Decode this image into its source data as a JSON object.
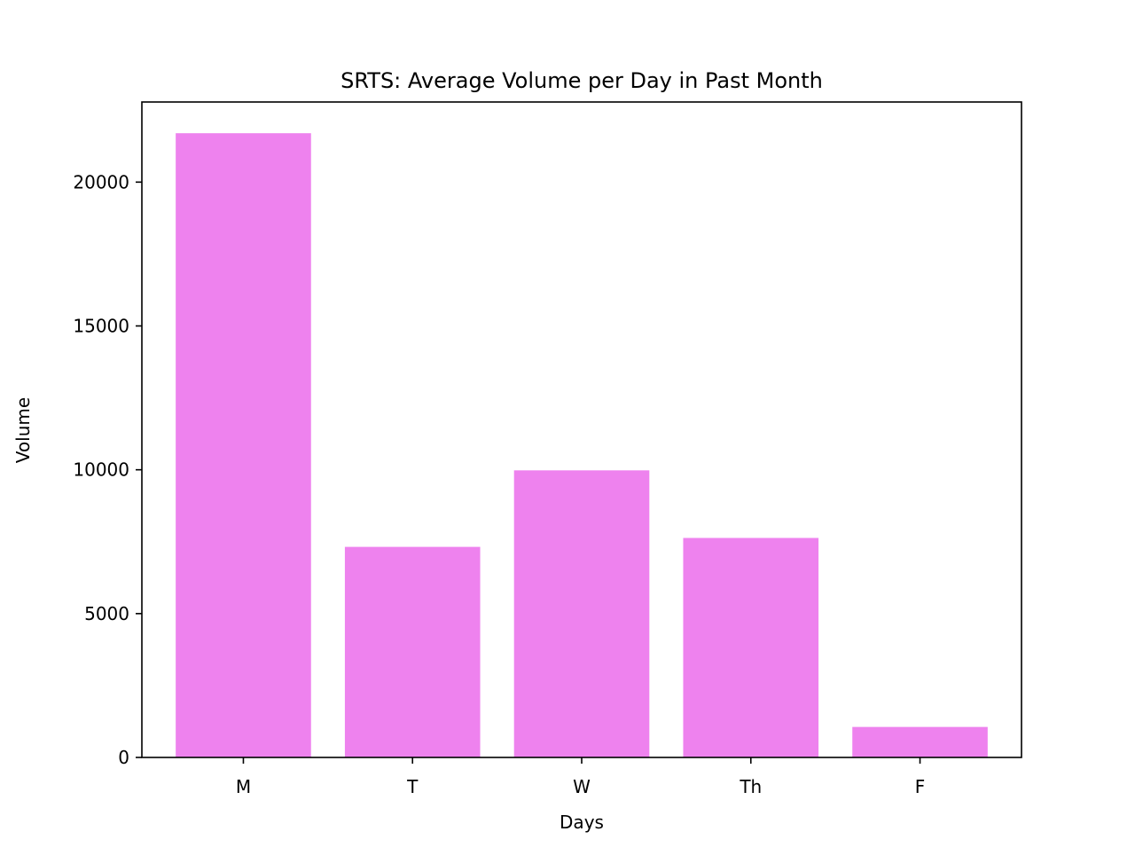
{
  "chart_data": {
    "type": "bar",
    "title": "SRTS: Average Volume per Day in Past Month",
    "xlabel": "Days",
    "ylabel": "Volume",
    "categories": [
      "M",
      "T",
      "W",
      "Th",
      "F"
    ],
    "values": [
      21700,
      7320,
      9980,
      7630,
      1060
    ],
    "ylim": [
      0,
      22785
    ],
    "yticks": [
      0,
      5000,
      10000,
      15000,
      20000
    ],
    "ytick_labels": [
      "0",
      "5000",
      "10000",
      "15000",
      "20000"
    ],
    "grid": false,
    "legend": "none",
    "bar_color": "#ee82ee"
  }
}
